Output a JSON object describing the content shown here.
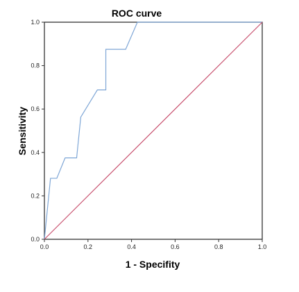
{
  "chart_data": {
    "type": "line",
    "title": "ROC curve",
    "xlabel": "1 - Specifity",
    "ylabel": "Sensitivity",
    "xlim": [
      0,
      1
    ],
    "ylim": [
      0,
      1
    ],
    "x_ticks": [
      "0.0",
      "0.2",
      "0.4",
      "0.6",
      "0.8",
      "1.0"
    ],
    "y_ticks": [
      "0.0",
      "0.2",
      "0.4",
      "0.6",
      "0.8",
      "1.0"
    ],
    "grid": false,
    "legend": "none",
    "series": [
      {
        "color": "#7ea6d6",
        "x": [
          0.0,
          0.028,
          0.057,
          0.095,
          0.148,
          0.167,
          0.243,
          0.282,
          0.282,
          0.373,
          0.427,
          1.0
        ],
        "y": [
          0.0,
          0.281,
          0.281,
          0.375,
          0.375,
          0.563,
          0.688,
          0.688,
          0.875,
          0.875,
          1.0,
          1.0
        ]
      },
      {
        "color": "#c8506e",
        "x": [
          0,
          1
        ],
        "y": [
          0,
          1
        ]
      }
    ],
    "colors": {
      "roc": "#7ea6d6",
      "reference": "#c8506e",
      "frame": "#333333"
    }
  }
}
